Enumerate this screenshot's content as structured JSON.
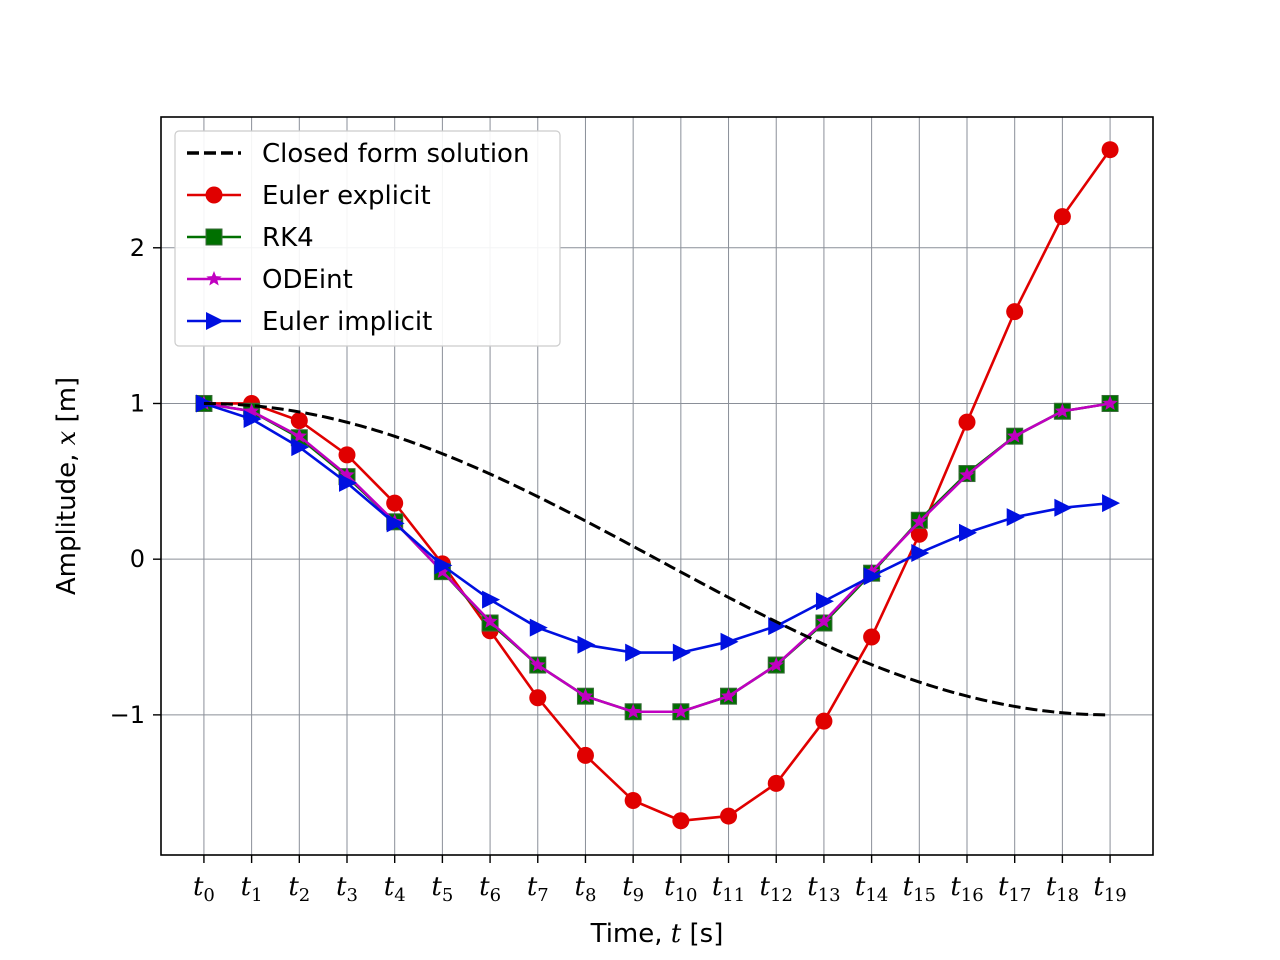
{
  "chart_data": {
    "type": "line",
    "xlabel": {
      "prefix": "Time, ",
      "var": "t",
      "suffix": " [s]"
    },
    "ylabel": {
      "prefix": "Amplitude, ",
      "var": "x",
      "suffix": " [m]"
    },
    "x": [
      0,
      1,
      2,
      3,
      4,
      5,
      6,
      7,
      8,
      9,
      10,
      11,
      12,
      13,
      14,
      15,
      16,
      17,
      18,
      19
    ],
    "x_tick_labels": [
      {
        "base": "t",
        "sub": "0"
      },
      {
        "base": "t",
        "sub": "1"
      },
      {
        "base": "t",
        "sub": "2"
      },
      {
        "base": "t",
        "sub": "3"
      },
      {
        "base": "t",
        "sub": "4"
      },
      {
        "base": "t",
        "sub": "5"
      },
      {
        "base": "t",
        "sub": "6"
      },
      {
        "base": "t",
        "sub": "7"
      },
      {
        "base": "t",
        "sub": "8"
      },
      {
        "base": "t",
        "sub": "9"
      },
      {
        "base": "t",
        "sub": "10"
      },
      {
        "base": "t",
        "sub": "11"
      },
      {
        "base": "t",
        "sub": "12"
      },
      {
        "base": "t",
        "sub": "13"
      },
      {
        "base": "t",
        "sub": "14"
      },
      {
        "base": "t",
        "sub": "15"
      },
      {
        "base": "t",
        "sub": "16"
      },
      {
        "base": "t",
        "sub": "17"
      },
      {
        "base": "t",
        "sub": "18"
      },
      {
        "base": "t",
        "sub": "19"
      }
    ],
    "y_ticks": [
      -1,
      0,
      1,
      2
    ],
    "y_tick_labels": [
      "−1",
      "0",
      "1",
      "2"
    ],
    "xlim": [
      -0.9,
      19.9
    ],
    "ylim": [
      -1.9,
      2.84
    ],
    "grid": true,
    "legend_position": "top-left",
    "series": [
      {
        "name": "Closed form solution",
        "color": "#000000",
        "style": "dashed",
        "marker": "none",
        "values": [
          1.0,
          0.986,
          0.946,
          0.88,
          0.789,
          0.677,
          0.546,
          0.401,
          0.245,
          0.082,
          -0.082,
          -0.245,
          -0.401,
          -0.546,
          -0.677,
          -0.789,
          -0.88,
          -0.946,
          -0.986,
          -1.0
        ],
        "smooth_reference": true
      },
      {
        "name": "Euler explicit",
        "color": "#e00000",
        "style": "solid",
        "marker": "circle",
        "values": [
          1.0,
          1.0,
          0.89,
          0.67,
          0.36,
          -0.03,
          -0.46,
          -0.89,
          -1.26,
          -1.55,
          -1.68,
          -1.65,
          -1.44,
          -1.04,
          -0.5,
          0.16,
          0.88,
          1.59,
          2.2,
          2.63
        ]
      },
      {
        "name": "RK4",
        "color": "#007000",
        "style": "solid",
        "marker": "square",
        "values": [
          1.0,
          0.95,
          0.78,
          0.53,
          0.24,
          -0.08,
          -0.41,
          -0.68,
          -0.88,
          -0.98,
          -0.98,
          -0.88,
          -0.68,
          -0.41,
          -0.09,
          0.25,
          0.55,
          0.79,
          0.95,
          1.0
        ]
      },
      {
        "name": "ODEint",
        "color": "#c000c0",
        "style": "solid",
        "marker": "star",
        "values": [
          1.0,
          0.95,
          0.79,
          0.54,
          0.24,
          -0.08,
          -0.4,
          -0.68,
          -0.88,
          -0.98,
          -0.98,
          -0.88,
          -0.68,
          -0.4,
          -0.08,
          0.24,
          0.54,
          0.79,
          0.95,
          1.0
        ]
      },
      {
        "name": "Euler implicit",
        "color": "#0010e0",
        "style": "solid",
        "marker": "triangle-right",
        "values": [
          1.0,
          0.9,
          0.72,
          0.49,
          0.23,
          -0.04,
          -0.26,
          -0.44,
          -0.55,
          -0.6,
          -0.6,
          -0.53,
          -0.43,
          -0.27,
          -0.11,
          0.04,
          0.17,
          0.27,
          0.33,
          0.36
        ]
      }
    ]
  }
}
